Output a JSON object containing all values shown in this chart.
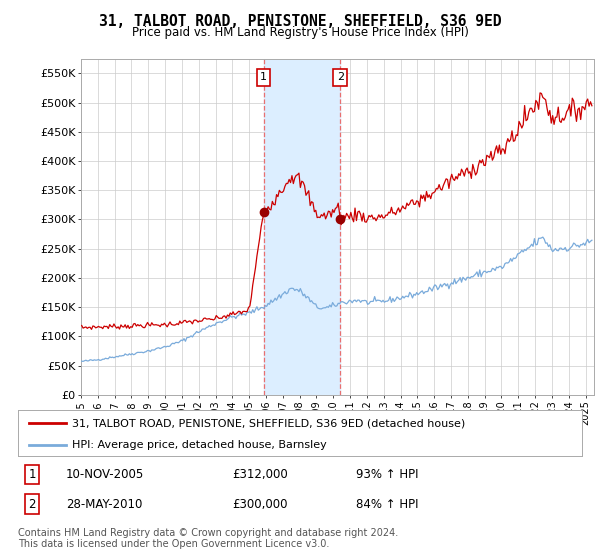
{
  "title": "31, TALBOT ROAD, PENISTONE, SHEFFIELD, S36 9ED",
  "subtitle": "Price paid vs. HM Land Registry's House Price Index (HPI)",
  "ylabel_ticks": [
    "£0",
    "£50K",
    "£100K",
    "£150K",
    "£200K",
    "£250K",
    "£300K",
    "£350K",
    "£400K",
    "£450K",
    "£500K",
    "£550K"
  ],
  "ytick_values": [
    0,
    50000,
    100000,
    150000,
    200000,
    250000,
    300000,
    350000,
    400000,
    450000,
    500000,
    550000
  ],
  "ylim": [
    0,
    575000
  ],
  "xlim_start": 1995.0,
  "xlim_end": 2025.5,
  "transaction1_date": 2005.86,
  "transaction1_price": 312000,
  "transaction1_label": "1",
  "transaction2_date": 2010.41,
  "transaction2_price": 300000,
  "transaction2_label": "2",
  "shade_color": "#dceeff",
  "red_line_color": "#cc0000",
  "blue_line_color": "#7aabdb",
  "marker_color": "#990000",
  "dashed_line_color": "#e87070",
  "legend_entry1": "31, TALBOT ROAD, PENISTONE, SHEFFIELD, S36 9ED (detached house)",
  "legend_entry2": "HPI: Average price, detached house, Barnsley",
  "table_row1": [
    "1",
    "10-NOV-2005",
    "£312,000",
    "93% ↑ HPI"
  ],
  "table_row2": [
    "2",
    "28-MAY-2010",
    "£300,000",
    "84% ↑ HPI"
  ],
  "footer": "Contains HM Land Registry data © Crown copyright and database right 2024.\nThis data is licensed under the Open Government Licence v3.0.",
  "background_color": "#ffffff",
  "plot_bg_color": "#ffffff",
  "grid_color": "#cccccc",
  "label_box_color": "#cc0000"
}
